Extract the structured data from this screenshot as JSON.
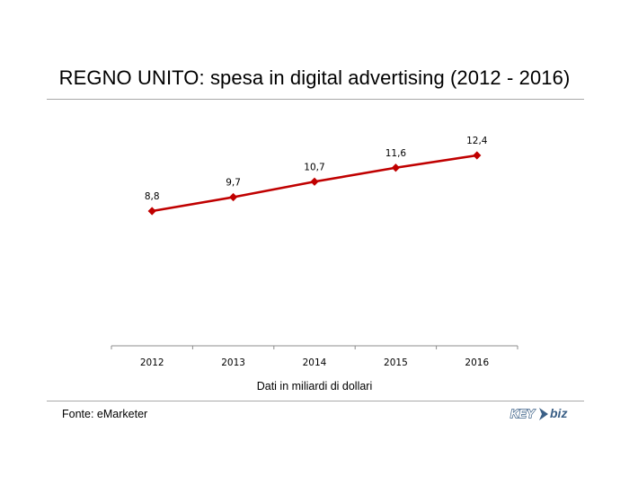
{
  "title": "REGNO UNITO: spesa in digital advertising (2012 - 2016)",
  "xlabel": "Dati in miliardi di dollari",
  "source": "Fonte: eMarketer",
  "logo": {
    "text_left": "KEY",
    "text_right": "biz",
    "color": "#3a5f86"
  },
  "chart_data": {
    "type": "line",
    "title": "REGNO UNITO: spesa in digital advertising (2012 - 2016)",
    "xlabel": "Dati in miliardi di dollari",
    "ylabel": "",
    "categories": [
      "2012",
      "2013",
      "2014",
      "2015",
      "2016"
    ],
    "series": [
      {
        "values": [
          8.8,
          9.7,
          10.7,
          11.6,
          12.4
        ],
        "labels": [
          "8,8",
          "9,7",
          "10,7",
          "11,6",
          "12,4"
        ],
        "color": "#c00000",
        "marker": "diamond"
      }
    ],
    "ylim": [
      0,
      14
    ],
    "grid": false,
    "legend": "none",
    "y_axis_visible": false
  }
}
